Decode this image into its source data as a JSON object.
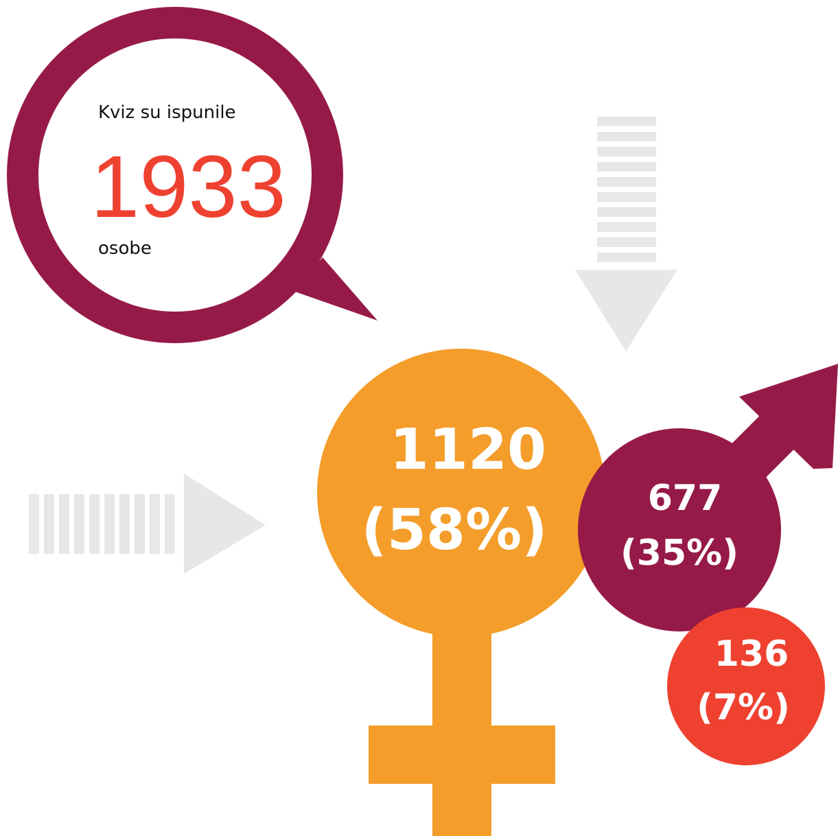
{
  "bubble": {
    "intro": "Kviz su ispunile",
    "total": "1933",
    "unit": "osobe"
  },
  "groups": [
    {
      "count": "1120",
      "percent": "(58%)"
    },
    {
      "count": "677",
      "percent": "(35%)"
    },
    {
      "count": "136",
      "percent": "(7%)"
    }
  ]
}
